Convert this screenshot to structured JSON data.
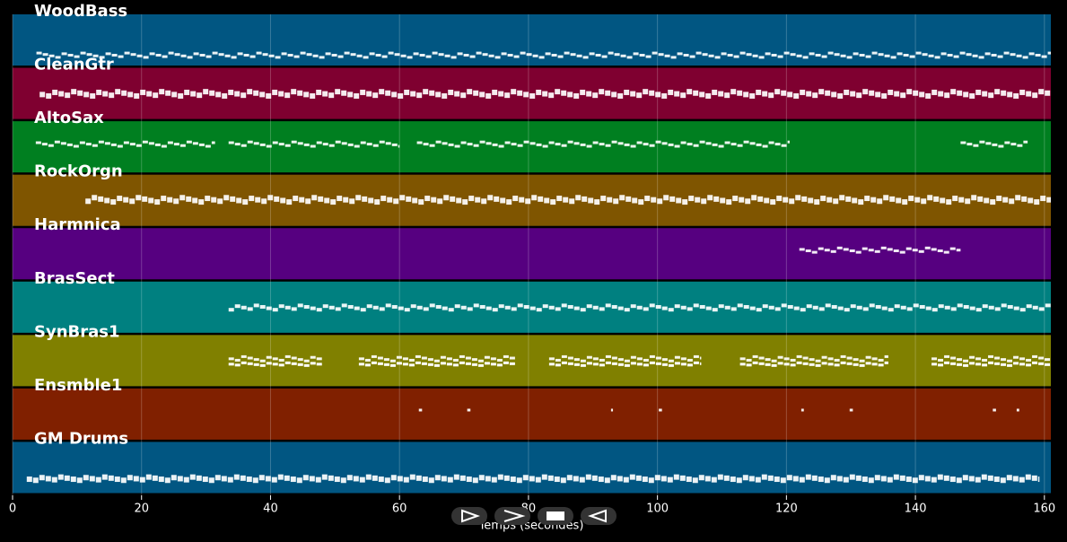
{
  "chart_data": {
    "type": "pianoroll",
    "xlabel": "Temps (secondes)",
    "xlim": [
      0,
      161
    ],
    "xticks": [
      0,
      20,
      40,
      60,
      80,
      100,
      120,
      140,
      160
    ],
    "grid": true,
    "tracks": [
      {
        "name": "WoodBass",
        "color": "#015682",
        "segments": [
          [
            3.7,
            161
          ]
        ]
      },
      {
        "name": "CleanGtr",
        "color": "#7f0030",
        "segments": [
          [
            4.2,
            161
          ]
        ]
      },
      {
        "name": "AltoSax",
        "color": "#007f20",
        "segments": [
          [
            3.6,
            31.4
          ],
          [
            33.5,
            60
          ],
          [
            62.7,
            120.5
          ],
          [
            147,
            157.4
          ]
        ]
      },
      {
        "name": "RockOrgn",
        "color": "#7f5500",
        "segments": [
          [
            11.3,
            161
          ]
        ]
      },
      {
        "name": "Harmnica",
        "color": "#560080",
        "segments": [
          [
            122,
            147
          ]
        ]
      },
      {
        "name": "BrasSect",
        "color": "#008080",
        "segments": [
          [
            33.5,
            161
          ]
        ]
      },
      {
        "name": "SynBras1",
        "color": "#808000",
        "segments": [
          [
            33.5,
            48
          ],
          [
            53.7,
            78
          ],
          [
            83.2,
            106.6
          ],
          [
            112.8,
            135.8
          ],
          [
            142.5,
            161
          ]
        ]
      },
      {
        "name": "Ensmble1",
        "color": "#802000",
        "segments": [
          [
            63,
            63.5
          ],
          [
            70.5,
            71
          ],
          [
            92.8,
            93.1
          ],
          [
            100.2,
            100.7
          ],
          [
            122.3,
            122.7
          ],
          [
            129.8,
            130.3
          ],
          [
            152,
            152.5
          ],
          [
            155.7,
            156.1
          ]
        ]
      },
      {
        "name": "GM Drums",
        "color": "#015682",
        "segments": [
          [
            2.2,
            159.2
          ]
        ]
      }
    ]
  }
}
